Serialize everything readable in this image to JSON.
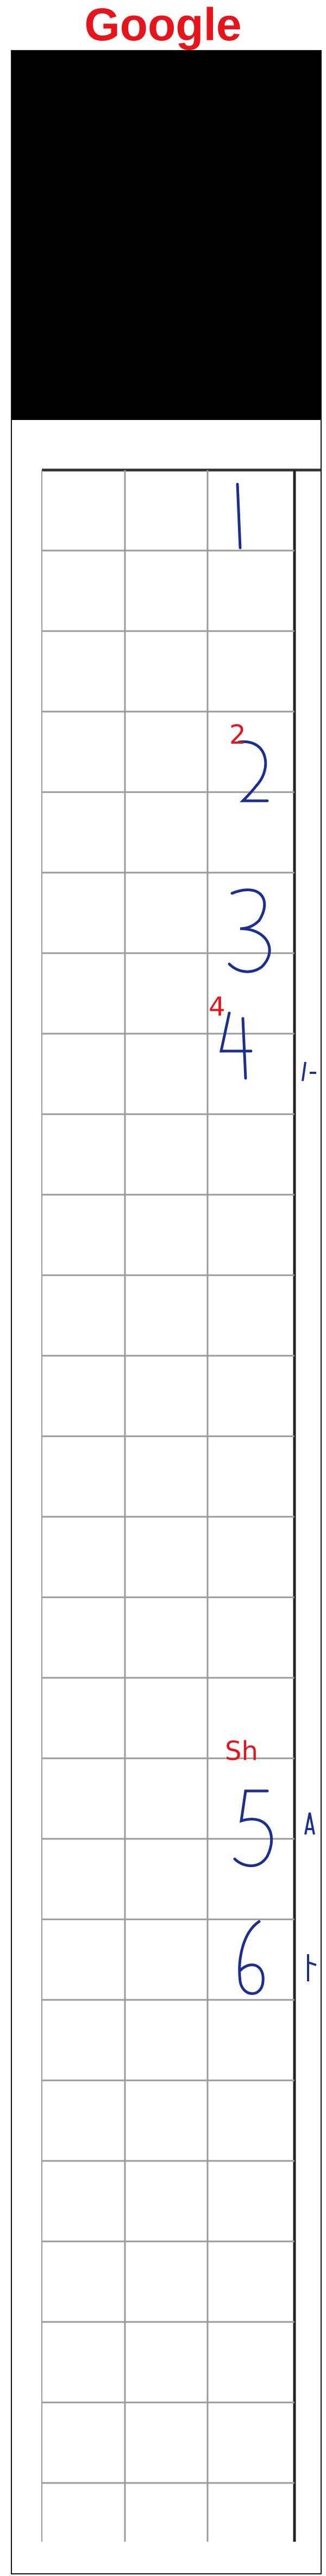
{
  "header": {
    "title": "Google"
  },
  "annotations": [
    {
      "id": "label-2",
      "text": "2"
    },
    {
      "id": "label-4",
      "text": "4"
    },
    {
      "id": "label-sh",
      "text": "Sh"
    }
  ],
  "handwritten_digits": [
    "1",
    "2",
    "3",
    "4",
    "5",
    "6"
  ],
  "colors": {
    "title": "#e8141b",
    "ink": "#1a2f8f",
    "grid": "#9a9a9a",
    "frame": "#111111"
  }
}
